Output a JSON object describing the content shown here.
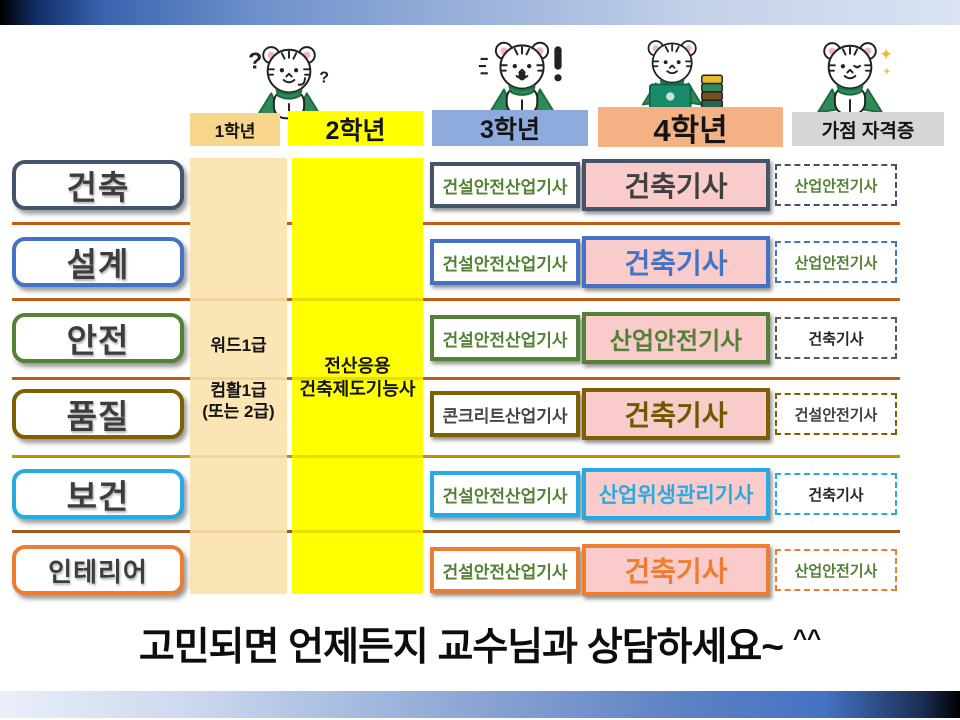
{
  "header": {
    "grade1": "1학년",
    "grade2": "2학년",
    "grade3": "3학년",
    "grade4": "4학년",
    "bonus": "가점 자격증"
  },
  "early_certs": {
    "word": "워드1급",
    "computer_line1": "컴활1급",
    "computer_line2": "(또는 2급)",
    "cad_line1": "전산응용",
    "cad_line2": "건축제도기능사"
  },
  "rows": [
    {
      "category": "건축",
      "accent": "#44546A",
      "y3_label": "건설안전산업기사",
      "y3_color": "#548235",
      "y4_label": "건축기사",
      "y4_color": "#3f3f3f",
      "bonus_label": "산업안전기사",
      "bonus_color": "#548235",
      "bonus_border": "#44546A"
    },
    {
      "category": "설계",
      "accent": "#4472C4",
      "y3_label": "건설안전산업기사",
      "y3_color": "#548235",
      "y4_label": "건축기사",
      "y4_color": "#4472C4",
      "bonus_label": "산업안전기사",
      "bonus_color": "#548235",
      "bonus_border": "#4472C4"
    },
    {
      "category": "안전",
      "accent": "#538135",
      "y3_label": "건설안전산업기사",
      "y3_color": "#548235",
      "y4_label": "산업안전기사",
      "y4_color": "#538135",
      "bonus_label": "건축기사",
      "bonus_color": "#262626",
      "bonus_border": "#595959"
    },
    {
      "category": "품질",
      "accent": "#7F6000",
      "y3_label": "콘크리트산업기사",
      "y3_color": "#454545",
      "y4_label": "건축기사",
      "y4_color": "#6F5800",
      "bonus_label": "건설안전기사",
      "bonus_color": "#3f3f3f",
      "bonus_border": "#7F6000"
    },
    {
      "category": "보건",
      "accent": "#27AAE1",
      "y3_label": "건설안전산업기사",
      "y3_color": "#548235",
      "y4_label": "산업위생관리기사",
      "y4_color": "#29ABE2",
      "bonus_label": "건축기사",
      "bonus_color": "#262626",
      "bonus_border": "#27AAE1"
    },
    {
      "category": "인테리어",
      "accent": "#ED7D31",
      "y3_label": "건설안전산업기사",
      "y3_color": "#548235",
      "y4_label": "건축기사",
      "y4_color": "#ED7D31",
      "bonus_label": "산업안전기사",
      "bonus_color": "#548235",
      "bonus_border": "#ED7D31"
    }
  ],
  "dividers": [
    "#C55A11",
    "#C55A11",
    "#C55A11",
    "#BF9000",
    "#A05A1E"
  ],
  "colors": {
    "cream_band": "#FBE5B5",
    "yellow_band": "#FFFF00",
    "cream_band_line": "#EFD69E",
    "yellow_band_line": "#E8DC05",
    "pink_box": "#F9CBCB",
    "mascot_green": "#2E8B57"
  },
  "mascots": [
    {
      "name": "thinking-tiger"
    },
    {
      "name": "surprised-tiger"
    },
    {
      "name": "studying-tiger"
    },
    {
      "name": "thumbs-up-tiger"
    }
  ],
  "footer": {
    "message": "고민되면 언제든지 교수님과 상담하세요~",
    "emoticon": "^^"
  }
}
